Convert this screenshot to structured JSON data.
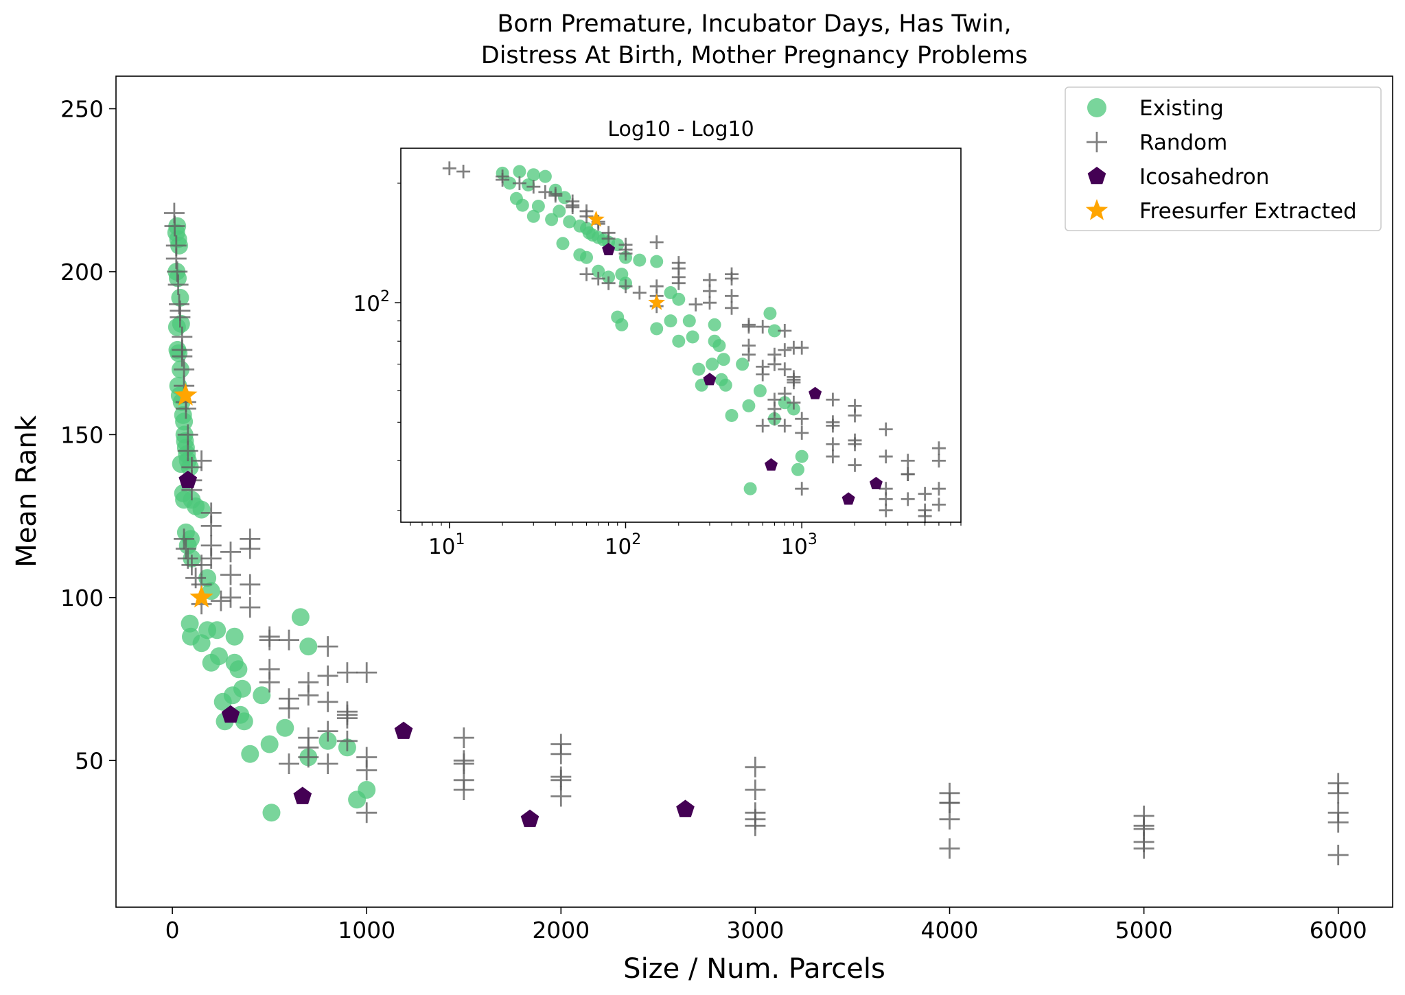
{
  "chart_data": {
    "type": "scatter",
    "title_line1": "Born Premature, Incubator Days, Has Twin,",
    "title_line2": "Distress At Birth, Mother Pregnancy Problems",
    "xlabel": "Size / Num. Parcels",
    "ylabel": "Mean Rank",
    "xlim": [
      -290,
      6280
    ],
    "ylim": [
      5,
      260
    ],
    "xticks": [
      0,
      1000,
      2000,
      3000,
      4000,
      5000,
      6000
    ],
    "yticks": [
      50,
      100,
      150,
      200,
      250
    ],
    "legend_position": "upper-right",
    "series": [
      {
        "name": "Existing",
        "color": "#4cc77a",
        "marker": "circle",
        "points": [
          [
            20,
            212
          ],
          [
            25,
            214
          ],
          [
            30,
            210
          ],
          [
            35,
            208
          ],
          [
            22,
            200
          ],
          [
            28,
            198
          ],
          [
            40,
            192
          ],
          [
            24,
            183
          ],
          [
            45,
            184
          ],
          [
            26,
            176
          ],
          [
            32,
            175
          ],
          [
            42,
            170
          ],
          [
            30,
            165
          ],
          [
            38,
            162
          ],
          [
            48,
            160
          ],
          [
            55,
            156
          ],
          [
            60,
            154
          ],
          [
            62,
            150
          ],
          [
            65,
            148
          ],
          [
            70,
            146
          ],
          [
            75,
            144
          ],
          [
            80,
            142
          ],
          [
            44,
            141
          ],
          [
            90,
            140
          ],
          [
            55,
            132
          ],
          [
            60,
            130
          ],
          [
            100,
            130
          ],
          [
            120,
            128
          ],
          [
            150,
            127
          ],
          [
            70,
            120
          ],
          [
            80,
            116
          ],
          [
            95,
            118
          ],
          [
            100,
            112
          ],
          [
            180,
            106
          ],
          [
            200,
            102
          ],
          [
            90,
            92
          ],
          [
            95,
            88
          ],
          [
            150,
            86
          ],
          [
            180,
            90
          ],
          [
            230,
            90
          ],
          [
            320,
            88
          ],
          [
            200,
            80
          ],
          [
            240,
            82
          ],
          [
            320,
            80
          ],
          [
            340,
            78
          ],
          [
            360,
            72
          ],
          [
            310,
            70
          ],
          [
            260,
            68
          ],
          [
            350,
            64
          ],
          [
            270,
            62
          ],
          [
            370,
            62
          ],
          [
            400,
            52
          ],
          [
            460,
            70
          ],
          [
            500,
            55
          ],
          [
            580,
            60
          ],
          [
            660,
            94
          ],
          [
            700,
            85
          ],
          [
            700,
            51
          ],
          [
            800,
            56
          ],
          [
            900,
            54
          ],
          [
            950,
            38
          ],
          [
            1000,
            41
          ],
          [
            510,
            34
          ]
        ]
      },
      {
        "name": "Random",
        "color": "#606060",
        "marker": "plus",
        "points": [
          [
            10,
            218
          ],
          [
            12,
            214
          ],
          [
            20,
            208
          ],
          [
            20,
            204
          ],
          [
            25,
            200
          ],
          [
            30,
            196
          ],
          [
            35,
            190
          ],
          [
            40,
            188
          ],
          [
            40,
            186
          ],
          [
            50,
            180
          ],
          [
            50,
            176
          ],
          [
            50,
            174
          ],
          [
            60,
            170
          ],
          [
            60,
            165
          ],
          [
            70,
            160
          ],
          [
            70,
            158
          ],
          [
            80,
            150
          ],
          [
            80,
            145
          ],
          [
            100,
            140
          ],
          [
            100,
            136
          ],
          [
            100,
            133
          ],
          [
            150,
            142
          ],
          [
            60,
            118
          ],
          [
            70,
            115
          ],
          [
            80,
            112
          ],
          [
            100,
            110
          ],
          [
            120,
            106
          ],
          [
            150,
            110
          ],
          [
            150,
            104
          ],
          [
            200,
            126
          ],
          [
            200,
            122
          ],
          [
            200,
            116
          ],
          [
            200,
            112
          ],
          [
            150,
            98
          ],
          [
            250,
            99
          ],
          [
            300,
            114
          ],
          [
            300,
            107
          ],
          [
            300,
            100
          ],
          [
            400,
            118
          ],
          [
            400,
            115
          ],
          [
            400,
            104
          ],
          [
            400,
            97
          ],
          [
            500,
            88
          ],
          [
            500,
            87
          ],
          [
            500,
            78
          ],
          [
            500,
            74
          ],
          [
            600,
            87
          ],
          [
            600,
            69
          ],
          [
            600,
            66
          ],
          [
            600,
            49
          ],
          [
            700,
            74
          ],
          [
            700,
            70
          ],
          [
            700,
            57
          ],
          [
            700,
            54
          ],
          [
            700,
            51
          ],
          [
            800,
            85
          ],
          [
            800,
            76
          ],
          [
            800,
            68
          ],
          [
            800,
            59
          ],
          [
            800,
            49
          ],
          [
            900,
            77
          ],
          [
            900,
            65
          ],
          [
            900,
            64
          ],
          [
            900,
            63
          ],
          [
            900,
            56
          ],
          [
            1000,
            77
          ],
          [
            1000,
            51
          ],
          [
            1000,
            47
          ],
          [
            1000,
            34
          ],
          [
            1500,
            57
          ],
          [
            1500,
            50
          ],
          [
            1500,
            49
          ],
          [
            1500,
            44
          ],
          [
            1500,
            41
          ],
          [
            2000,
            55
          ],
          [
            2000,
            52
          ],
          [
            2000,
            45
          ],
          [
            2000,
            44
          ],
          [
            2000,
            39
          ],
          [
            3000,
            48
          ],
          [
            3000,
            41
          ],
          [
            3000,
            34
          ],
          [
            3000,
            32
          ],
          [
            3000,
            30
          ],
          [
            4000,
            40
          ],
          [
            4000,
            37
          ],
          [
            4000,
            37
          ],
          [
            4000,
            32
          ],
          [
            4000,
            23
          ],
          [
            5000,
            33
          ],
          [
            5000,
            30
          ],
          [
            5000,
            29
          ],
          [
            5000,
            25
          ],
          [
            5000,
            23
          ],
          [
            6000,
            43
          ],
          [
            6000,
            40
          ],
          [
            6000,
            34
          ],
          [
            6000,
            31
          ],
          [
            6000,
            21
          ]
        ]
      },
      {
        "name": "Icosahedron",
        "color": "#440154",
        "marker": "pentagon",
        "points": [
          [
            80,
            136
          ],
          [
            300,
            64
          ],
          [
            670,
            39
          ],
          [
            1190,
            59
          ],
          [
            1840,
            32
          ],
          [
            2640,
            35
          ]
        ]
      },
      {
        "name": "Freesurfer Extracted",
        "color": "#ffa500",
        "marker": "star",
        "points": [
          [
            68,
            162
          ],
          [
            150,
            100
          ]
        ]
      }
    ],
    "inset": {
      "title": "Log10 - Log10",
      "xscale": "log",
      "yscale": "log",
      "xlim": [
        5.3,
        8000
      ],
      "ylim": [
        28,
        245
      ],
      "xticks": [
        10,
        100,
        1000
      ],
      "xtick_labels": [
        [
          "10",
          "1"
        ],
        [
          "10",
          "2"
        ],
        [
          "10",
          "3"
        ]
      ],
      "yticks": [
        100
      ],
      "ytick_labels": [
        [
          "10",
          "2"
        ]
      ]
    }
  }
}
